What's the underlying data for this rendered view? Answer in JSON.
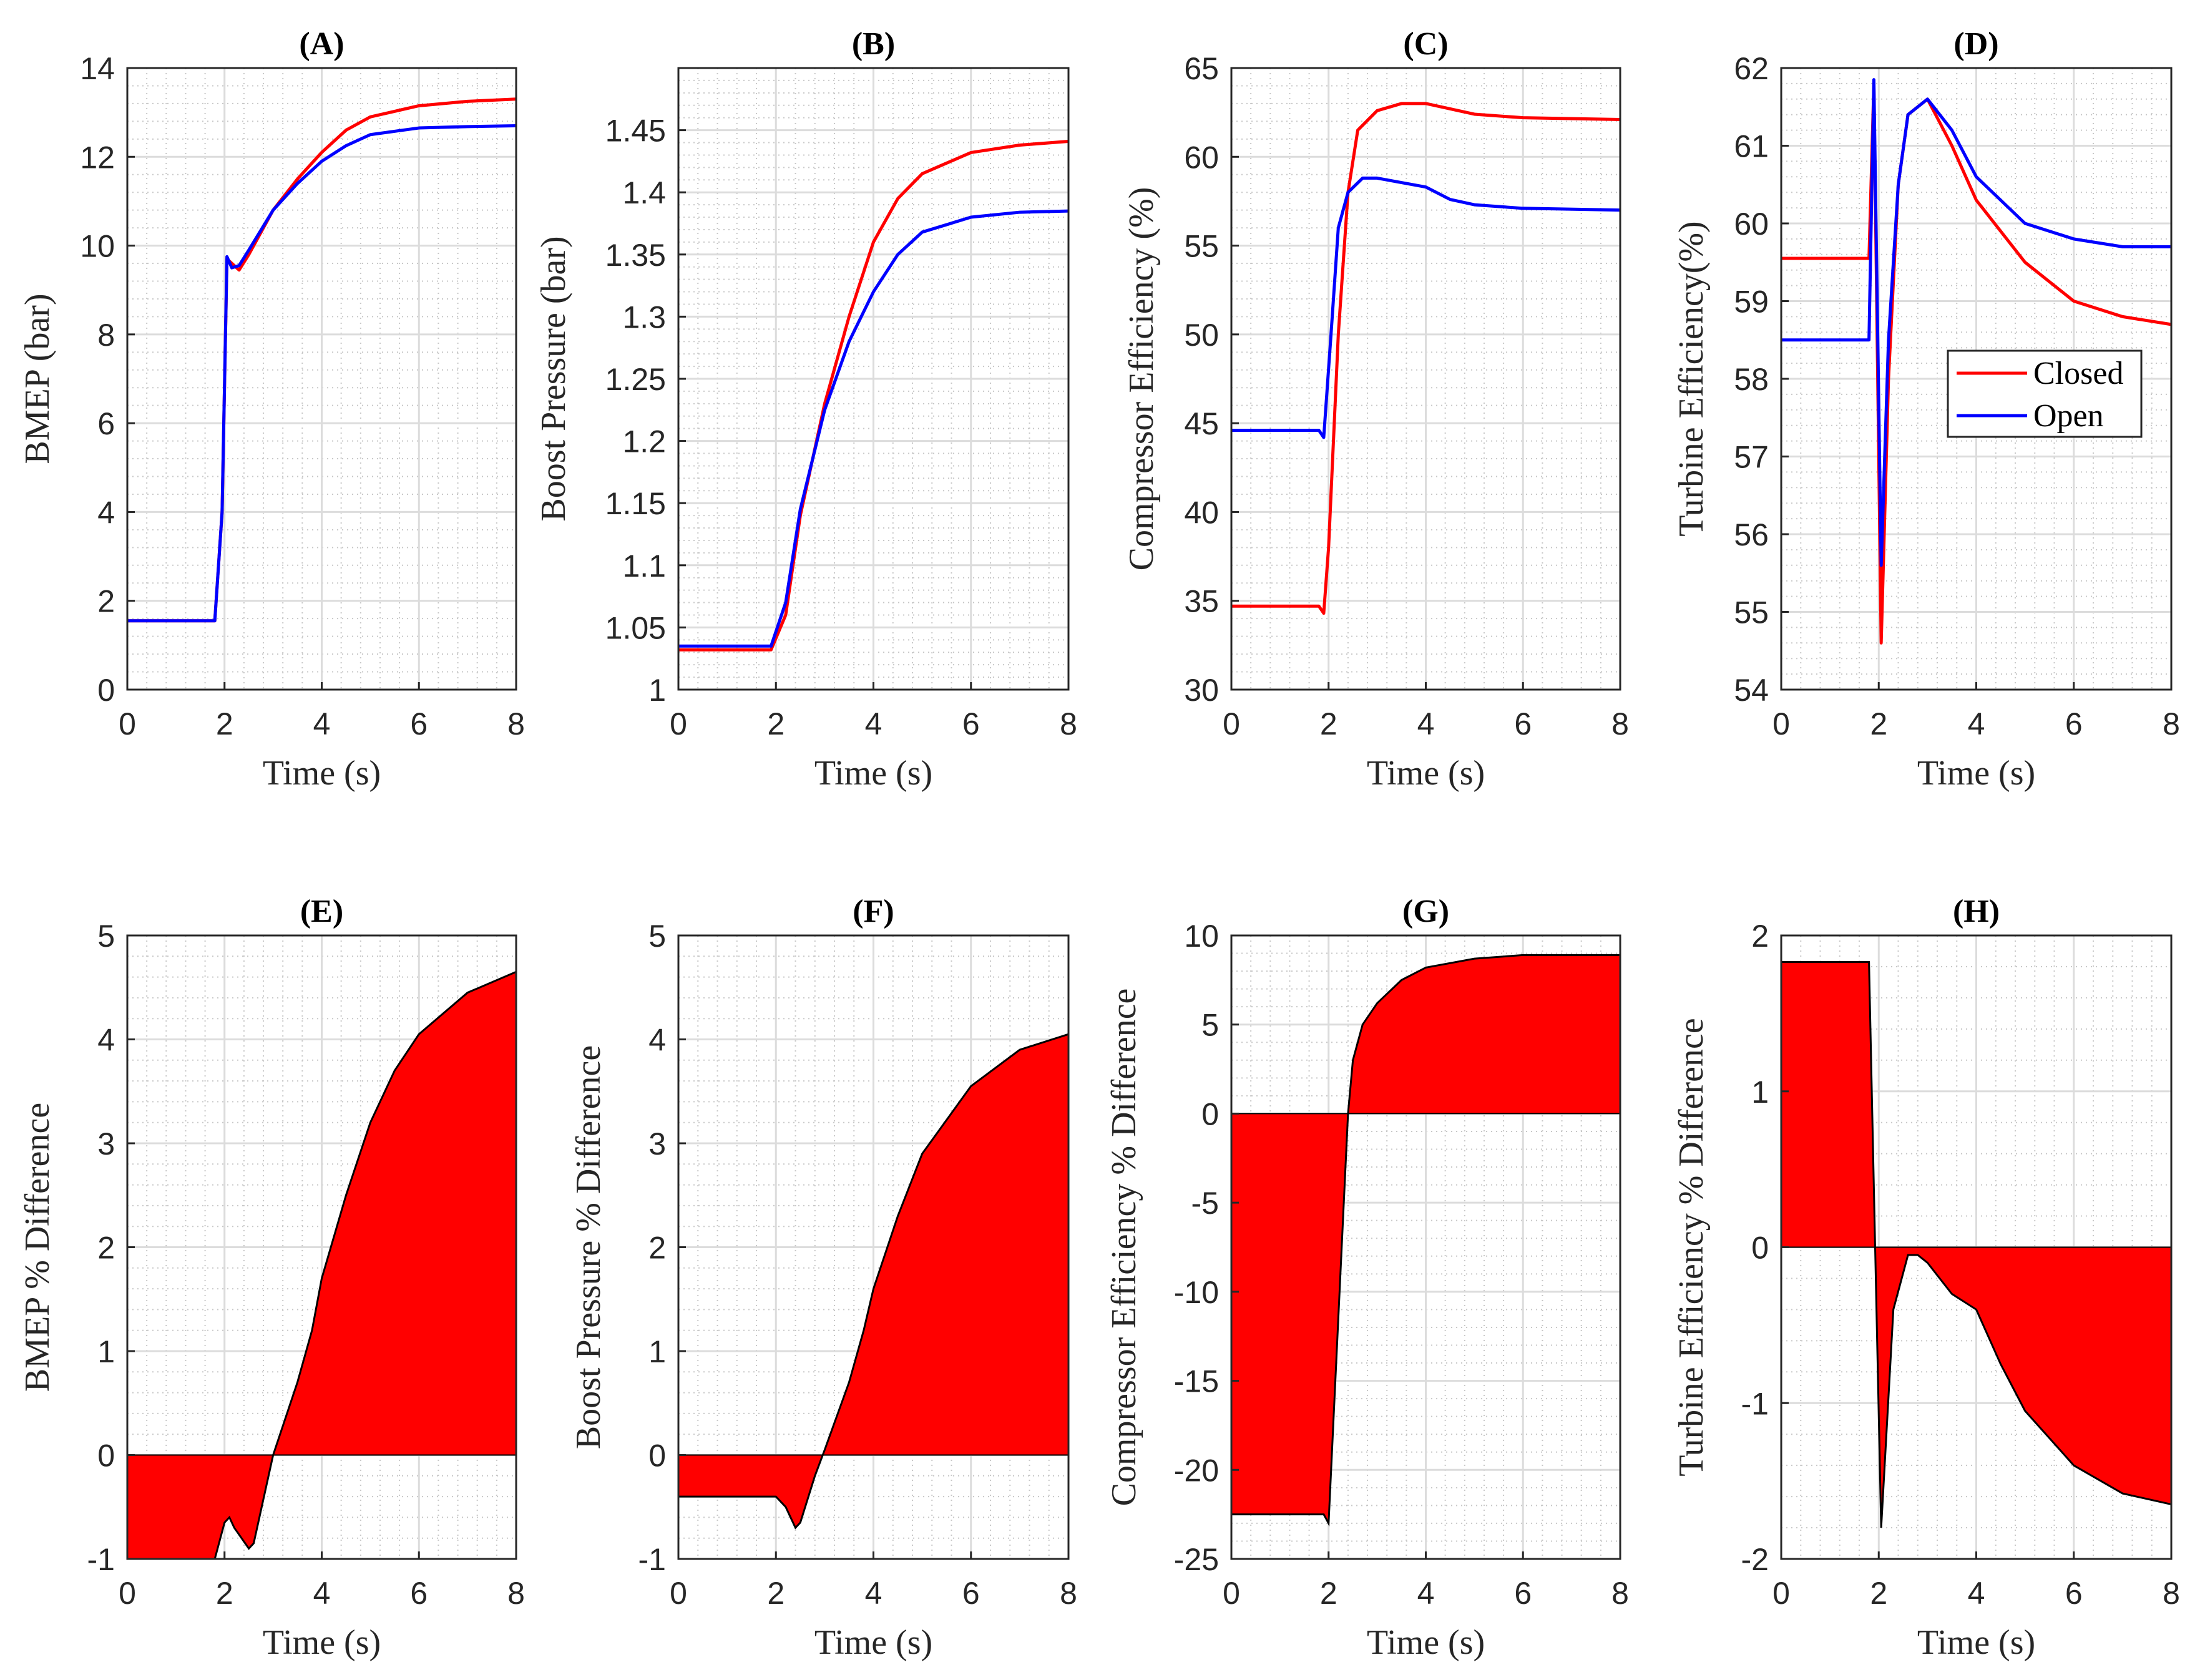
{
  "colors": {
    "closed": "#ff0000",
    "open": "#0000ff",
    "fill": "#ff0000"
  },
  "chart_data": [
    {
      "type": "line",
      "title": "(A)",
      "xlabel": "Time (s)",
      "ylabel": "BMEP (bar)",
      "xlim": [
        0,
        8
      ],
      "ylim": [
        0,
        14
      ],
      "xticks": [
        0,
        2,
        4,
        6,
        8
      ],
      "yticks": [
        0,
        2,
        4,
        6,
        8,
        10,
        12,
        14
      ],
      "ytick_labels": [
        "0",
        "2",
        "4",
        "6",
        "8",
        "10",
        "12",
        "14"
      ],
      "grid": true,
      "series": [
        {
          "name": "Closed",
          "color": "closed",
          "points": [
            [
              0,
              1.55
            ],
            [
              1.8,
              1.55
            ],
            [
              1.95,
              4
            ],
            [
              2.05,
              9.7
            ],
            [
              2.15,
              9.6
            ],
            [
              2.3,
              9.45
            ],
            [
              2.5,
              9.8
            ],
            [
              3,
              10.8
            ],
            [
              3.5,
              11.5
            ],
            [
              4,
              12.1
            ],
            [
              4.5,
              12.6
            ],
            [
              5,
              12.9
            ],
            [
              6,
              13.15
            ],
            [
              7,
              13.25
            ],
            [
              8,
              13.3
            ]
          ]
        },
        {
          "name": "Open",
          "color": "open",
          "points": [
            [
              0,
              1.55
            ],
            [
              1.8,
              1.55
            ],
            [
              1.95,
              4
            ],
            [
              2.05,
              9.75
            ],
            [
              2.15,
              9.5
            ],
            [
              2.3,
              9.55
            ],
            [
              2.5,
              9.9
            ],
            [
              3,
              10.8
            ],
            [
              3.5,
              11.4
            ],
            [
              4,
              11.9
            ],
            [
              4.5,
              12.25
            ],
            [
              5,
              12.5
            ],
            [
              6,
              12.65
            ],
            [
              7,
              12.68
            ],
            [
              8,
              12.7
            ]
          ]
        }
      ]
    },
    {
      "type": "line",
      "title": "(B)",
      "xlabel": "Time (s)",
      "ylabel": "Boost Pressure (bar)",
      "xlim": [
        0,
        8
      ],
      "ylim": [
        1,
        1.5
      ],
      "xticks": [
        0,
        2,
        4,
        6,
        8
      ],
      "yticks": [
        1,
        1.05,
        1.1,
        1.15,
        1.2,
        1.25,
        1.3,
        1.35,
        1.4,
        1.45
      ],
      "ytick_labels": [
        "1",
        "1.05",
        "1.1",
        "1.15",
        "1.2",
        "1.25",
        "1.3",
        "1.35",
        "1.4",
        "1.45"
      ],
      "grid": true,
      "series": [
        {
          "name": "Closed",
          "color": "closed",
          "points": [
            [
              0,
              1.032
            ],
            [
              1.9,
              1.032
            ],
            [
              2.2,
              1.06
            ],
            [
              2.5,
              1.14
            ],
            [
              3,
              1.23
            ],
            [
              3.5,
              1.3
            ],
            [
              4,
              1.36
            ],
            [
              4.5,
              1.395
            ],
            [
              5,
              1.415
            ],
            [
              6,
              1.432
            ],
            [
              7,
              1.438
            ],
            [
              8,
              1.441
            ]
          ]
        },
        {
          "name": "Open",
          "color": "open",
          "points": [
            [
              0,
              1.035
            ],
            [
              1.9,
              1.035
            ],
            [
              2.2,
              1.07
            ],
            [
              2.5,
              1.145
            ],
            [
              3,
              1.225
            ],
            [
              3.5,
              1.28
            ],
            [
              4,
              1.32
            ],
            [
              4.5,
              1.35
            ],
            [
              5,
              1.368
            ],
            [
              6,
              1.38
            ],
            [
              7,
              1.384
            ],
            [
              8,
              1.385
            ]
          ]
        }
      ]
    },
    {
      "type": "line",
      "title": "(C)",
      "xlabel": "Time (s)",
      "ylabel": "Compressor Efficiency (%)",
      "xlim": [
        0,
        8
      ],
      "ylim": [
        30,
        65
      ],
      "xticks": [
        0,
        2,
        4,
        6,
        8
      ],
      "yticks": [
        30,
        35,
        40,
        45,
        50,
        55,
        60,
        65
      ],
      "ytick_labels": [
        "30",
        "35",
        "40",
        "45",
        "50",
        "55",
        "60",
        "65"
      ],
      "grid": true,
      "series": [
        {
          "name": "Closed",
          "color": "closed",
          "points": [
            [
              0,
              34.7
            ],
            [
              1.8,
              34.7
            ],
            [
              1.9,
              34.3
            ],
            [
              2,
              38
            ],
            [
              2.2,
              50
            ],
            [
              2.4,
              58
            ],
            [
              2.6,
              61.5
            ],
            [
              3,
              62.6
            ],
            [
              3.5,
              63
            ],
            [
              4,
              63
            ],
            [
              5,
              62.4
            ],
            [
              6,
              62.2
            ],
            [
              8,
              62.1
            ]
          ]
        },
        {
          "name": "Open",
          "color": "open",
          "points": [
            [
              0,
              44.6
            ],
            [
              1.8,
              44.6
            ],
            [
              1.9,
              44.2
            ],
            [
              2.05,
              50
            ],
            [
              2.2,
              56
            ],
            [
              2.4,
              58
            ],
            [
              2.7,
              58.8
            ],
            [
              3,
              58.8
            ],
            [
              4,
              58.3
            ],
            [
              4.5,
              57.6
            ],
            [
              5,
              57.3
            ],
            [
              6,
              57.1
            ],
            [
              8,
              57
            ]
          ]
        }
      ]
    },
    {
      "type": "line",
      "title": "(D)",
      "xlabel": "Time (s)",
      "ylabel": "Turbine Efficiency(%)",
      "xlim": [
        0,
        8
      ],
      "ylim": [
        54,
        62
      ],
      "xticks": [
        0,
        2,
        4,
        6,
        8
      ],
      "yticks": [
        54,
        55,
        56,
        57,
        58,
        59,
        60,
        61,
        62
      ],
      "ytick_labels": [
        "54",
        "55",
        "56",
        "57",
        "58",
        "59",
        "60",
        "61",
        "62"
      ],
      "grid": true,
      "legend": {
        "entries": [
          "Closed",
          "Open"
        ],
        "placement": "center-right"
      },
      "series": [
        {
          "name": "Closed",
          "color": "closed",
          "points": [
            [
              0,
              59.55
            ],
            [
              1.8,
              59.55
            ],
            [
              1.9,
              61.8
            ],
            [
              2.05,
              54.6
            ],
            [
              2.2,
              58
            ],
            [
              2.4,
              60.5
            ],
            [
              2.6,
              61.4
            ],
            [
              3,
              61.6
            ],
            [
              3.5,
              61
            ],
            [
              4,
              60.3
            ],
            [
              5,
              59.5
            ],
            [
              6,
              59
            ],
            [
              7,
              58.8
            ],
            [
              8,
              58.7
            ]
          ]
        },
        {
          "name": "Open",
          "color": "open",
          "points": [
            [
              0,
              58.5
            ],
            [
              1.8,
              58.5
            ],
            [
              1.9,
              61.85
            ],
            [
              2.05,
              55.6
            ],
            [
              2.2,
              58.5
            ],
            [
              2.4,
              60.5
            ],
            [
              2.6,
              61.4
            ],
            [
              3,
              61.6
            ],
            [
              3.5,
              61.2
            ],
            [
              4,
              60.6
            ],
            [
              5,
              60
            ],
            [
              6,
              59.8
            ],
            [
              7,
              59.7
            ],
            [
              8,
              59.7
            ]
          ]
        }
      ]
    },
    {
      "type": "area",
      "title": "(E)",
      "xlabel": "Time (s)",
      "ylabel": "BMEP % Difference",
      "xlim": [
        0,
        8
      ],
      "ylim": [
        -1,
        5
      ],
      "xticks": [
        0,
        2,
        4,
        6,
        8
      ],
      "yticks": [
        -1,
        0,
        1,
        2,
        3,
        4,
        5
      ],
      "ytick_labels": [
        "-1",
        "0",
        "1",
        "2",
        "3",
        "4",
        "5"
      ],
      "grid": true,
      "series": [
        {
          "name": "Difference",
          "color": "fill",
          "points": [
            [
              0,
              -1
            ],
            [
              1.8,
              -1
            ],
            [
              2,
              -0.65
            ],
            [
              2.1,
              -0.6
            ],
            [
              2.2,
              -0.7
            ],
            [
              2.5,
              -0.9
            ],
            [
              2.6,
              -0.85
            ],
            [
              3,
              0
            ],
            [
              3.5,
              0.7
            ],
            [
              3.8,
              1.2
            ],
            [
              4,
              1.7
            ],
            [
              4.5,
              2.5
            ],
            [
              5,
              3.2
            ],
            [
              5.5,
              3.7
            ],
            [
              6,
              4.05
            ],
            [
              7,
              4.45
            ],
            [
              8,
              4.65
            ]
          ]
        }
      ]
    },
    {
      "type": "area",
      "title": "(F)",
      "xlabel": "Time (s)",
      "ylabel": "Boost Pressure % Difference",
      "xlim": [
        0,
        8
      ],
      "ylim": [
        -1,
        5
      ],
      "xticks": [
        0,
        2,
        4,
        6,
        8
      ],
      "yticks": [
        -1,
        0,
        1,
        2,
        3,
        4,
        5
      ],
      "ytick_labels": [
        "-1",
        "0",
        "1",
        "2",
        "3",
        "4",
        "5"
      ],
      "grid": true,
      "series": [
        {
          "name": "Difference",
          "color": "fill",
          "points": [
            [
              0,
              -0.4
            ],
            [
              2,
              -0.4
            ],
            [
              2.2,
              -0.5
            ],
            [
              2.4,
              -0.7
            ],
            [
              2.5,
              -0.65
            ],
            [
              2.8,
              -0.2
            ],
            [
              3,
              0.05
            ],
            [
              3.5,
              0.7
            ],
            [
              3.8,
              1.2
            ],
            [
              4,
              1.6
            ],
            [
              4.5,
              2.3
            ],
            [
              5,
              2.9
            ],
            [
              6,
              3.55
            ],
            [
              7,
              3.9
            ],
            [
              8,
              4.05
            ]
          ]
        }
      ]
    },
    {
      "type": "area",
      "title": "(G)",
      "xlabel": "Time (s)",
      "ylabel": "Compressor Efficiency % Difference",
      "xlim": [
        0,
        8
      ],
      "ylim": [
        -25,
        10
      ],
      "xticks": [
        0,
        2,
        4,
        6,
        8
      ],
      "yticks": [
        -25,
        -20,
        -15,
        -10,
        -5,
        0,
        5,
        10
      ],
      "ytick_labels": [
        "-25",
        "-20",
        "-15",
        "-10",
        "-5",
        "0",
        "5",
        "10"
      ],
      "grid": true,
      "series": [
        {
          "name": "Difference",
          "color": "fill",
          "points": [
            [
              0,
              -22.5
            ],
            [
              1.9,
              -22.5
            ],
            [
              2,
              -23
            ],
            [
              2.4,
              0
            ],
            [
              2.5,
              3
            ],
            [
              2.7,
              5
            ],
            [
              3,
              6.2
            ],
            [
              3.5,
              7.5
            ],
            [
              4,
              8.2
            ],
            [
              5,
              8.7
            ],
            [
              6,
              8.9
            ],
            [
              8,
              8.9
            ]
          ]
        }
      ]
    },
    {
      "type": "area",
      "title": "(H)",
      "xlabel": "Time (s)",
      "ylabel": "Turbine Efficiency % Difference",
      "xlim": [
        0,
        8
      ],
      "ylim": [
        -2,
        2
      ],
      "xticks": [
        0,
        2,
        4,
        6,
        8
      ],
      "yticks": [
        -2,
        -1,
        0,
        1,
        2
      ],
      "ytick_labels": [
        "-2",
        "-1",
        "0",
        "1",
        "2"
      ],
      "grid": true,
      "series": [
        {
          "name": "Difference",
          "color": "fill",
          "points": [
            [
              0,
              1.83
            ],
            [
              1.8,
              1.83
            ],
            [
              2.05,
              -1.8
            ],
            [
              2.3,
              -0.4
            ],
            [
              2.6,
              -0.05
            ],
            [
              2.8,
              -0.05
            ],
            [
              3,
              -0.1
            ],
            [
              3.5,
              -0.3
            ],
            [
              4,
              -0.4
            ],
            [
              4.5,
              -0.75
            ],
            [
              5,
              -1.05
            ],
            [
              6,
              -1.4
            ],
            [
              7,
              -1.58
            ],
            [
              8,
              -1.65
            ]
          ]
        }
      ]
    }
  ]
}
